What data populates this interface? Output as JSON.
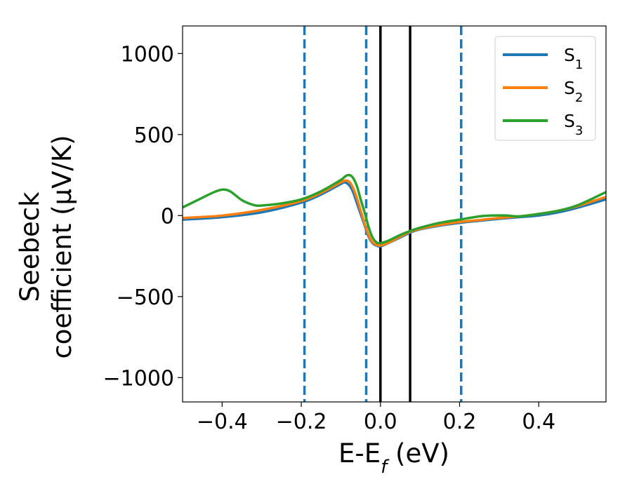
{
  "chart_data": {
    "type": "line",
    "title": "",
    "xlabel": "E-E",
    "xlabel_sub": "f",
    "xlabel_unit": " (eV)",
    "ylabel_line1": "Seebeck",
    "ylabel_line2": "coefficient  (μV/K)",
    "xlim": [
      -0.5,
      0.57
    ],
    "ylim": [
      -1150,
      1170
    ],
    "xticks": [
      -0.4,
      -0.2,
      0.0,
      0.2,
      0.4
    ],
    "xtick_labels": [
      "−0.4",
      "−0.2",
      "0.0",
      "0.2",
      "0.4"
    ],
    "yticks": [
      1000,
      500,
      0,
      -500,
      -1000
    ],
    "ytick_labels": [
      "1000",
      "500",
      "0",
      "−500",
      "−1000"
    ],
    "grid": false,
    "legend_position": "top-right",
    "vlines_dashed": {
      "x": [
        -0.192,
        -0.036,
        0.204
      ],
      "color": "#1f77b4"
    },
    "vlines_solid": {
      "x": [
        0.0,
        0.075
      ],
      "color": "#000000"
    },
    "series": [
      {
        "name": "S",
        "name_sub": "1",
        "color": "#1f77b4",
        "x": [
          -0.5,
          -0.4,
          -0.3,
          -0.2,
          -0.15,
          -0.1,
          -0.09,
          -0.08,
          -0.07,
          -0.06,
          -0.05,
          -0.04,
          -0.03,
          -0.02,
          -0.01,
          0.0,
          0.02,
          0.05,
          0.075,
          0.1,
          0.15,
          0.2,
          0.25,
          0.3,
          0.35,
          0.4,
          0.45,
          0.5,
          0.57
        ],
        "y": [
          -25,
          -10,
          20,
          80,
          130,
          195,
          205,
          190,
          150,
          80,
          10,
          -60,
          -130,
          -170,
          -185,
          -190,
          -170,
          -135,
          -105,
          -85,
          -62,
          -45,
          -32,
          -20,
          -10,
          0,
          20,
          50,
          100
        ]
      },
      {
        "name": "S",
        "name_sub": "2",
        "color": "#ff7f0e",
        "x": [
          -0.5,
          -0.4,
          -0.3,
          -0.2,
          -0.15,
          -0.1,
          -0.09,
          -0.08,
          -0.07,
          -0.06,
          -0.05,
          -0.04,
          -0.03,
          -0.02,
          -0.01,
          0.0,
          0.02,
          0.05,
          0.075,
          0.1,
          0.15,
          0.2,
          0.25,
          0.3,
          0.35,
          0.4,
          0.45,
          0.5,
          0.57
        ],
        "y": [
          -15,
          0,
          35,
          90,
          140,
          205,
          215,
          212,
          175,
          110,
          30,
          -50,
          -120,
          -165,
          -180,
          -185,
          -168,
          -130,
          -100,
          -82,
          -58,
          -40,
          -28,
          -15,
          -5,
          10,
          30,
          60,
          115
        ]
      },
      {
        "name": "S",
        "name_sub": "3",
        "color": "#2ca02c",
        "x": [
          -0.5,
          -0.45,
          -0.42,
          -0.4,
          -0.38,
          -0.35,
          -0.32,
          -0.3,
          -0.25,
          -0.2,
          -0.15,
          -0.1,
          -0.09,
          -0.08,
          -0.07,
          -0.06,
          -0.05,
          -0.04,
          -0.03,
          -0.02,
          -0.01,
          0.0,
          0.02,
          0.05,
          0.075,
          0.1,
          0.15,
          0.2,
          0.25,
          0.28,
          0.32,
          0.35,
          0.4,
          0.45,
          0.5,
          0.57
        ],
        "y": [
          50,
          110,
          145,
          160,
          150,
          95,
          65,
          62,
          75,
          100,
          150,
          220,
          240,
          250,
          235,
          185,
          100,
          20,
          -70,
          -135,
          -165,
          -170,
          -155,
          -120,
          -95,
          -75,
          -45,
          -25,
          -5,
          0,
          0,
          -5,
          10,
          30,
          65,
          145
        ]
      }
    ]
  }
}
